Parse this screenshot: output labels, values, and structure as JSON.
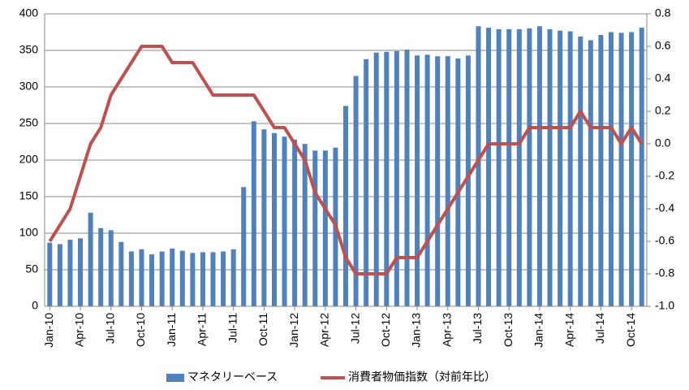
{
  "chart_data": {
    "type": "bar_line",
    "categories": [
      "Jan-10",
      null,
      null,
      "Apr-10",
      null,
      null,
      "Jul-10",
      null,
      null,
      "Oct-10",
      null,
      null,
      "Jan-11",
      null,
      null,
      "Apr-11",
      null,
      null,
      "Jul-11",
      null,
      null,
      "Oct-11",
      null,
      null,
      "Jan-12",
      null,
      null,
      "Apr-12",
      null,
      null,
      "Jul-12",
      null,
      null,
      "Oct-12",
      null,
      null,
      "Jan-13",
      null,
      null,
      "Apr-13",
      null,
      null,
      "Jul-13",
      null,
      null,
      "Oct-13",
      null,
      null,
      "Jan-14",
      null,
      null,
      "Apr-14",
      null,
      null,
      "Jul-14",
      null,
      null,
      "Oct-14",
      null
    ],
    "series": [
      {
        "name": "マネタリーベース",
        "color": "#4f81bd",
        "type": "bar",
        "values": [
          87,
          85,
          91,
          93,
          128,
          107,
          104,
          88,
          75,
          78,
          71,
          75,
          79,
          76,
          73,
          74,
          74,
          75,
          78,
          163,
          253,
          242,
          237,
          232,
          228,
          222,
          213,
          213,
          217,
          274,
          315,
          338,
          347,
          348,
          349,
          351,
          343,
          344,
          342,
          342,
          339,
          343,
          383,
          381,
          379,
          379,
          379,
          380,
          383,
          379,
          377,
          376,
          369,
          364,
          371,
          375,
          374,
          375,
          381
        ]
      },
      {
        "name": "消費者物価指数（対前年比）",
        "color": "#c0504d",
        "type": "line",
        "axis": "y2",
        "values": [
          -0.6,
          -0.5,
          -0.4,
          -0.2,
          0.0,
          0.1,
          0.3,
          0.4,
          0.5,
          0.6,
          0.6,
          0.6,
          0.5,
          0.5,
          0.5,
          0.4,
          0.3,
          0.3,
          0.3,
          0.3,
          0.3,
          0.2,
          0.1,
          0.1,
          0.0,
          -0.1,
          -0.3,
          -0.4,
          -0.5,
          -0.7,
          -0.8,
          -0.8,
          -0.8,
          -0.8,
          -0.7,
          -0.7,
          -0.7,
          -0.6,
          -0.5,
          -0.4,
          -0.3,
          -0.2,
          -0.1,
          0.0,
          0.0,
          0.0,
          0.0,
          0.1,
          0.1,
          0.1,
          0.1,
          0.1,
          0.2,
          0.1,
          0.1,
          0.1,
          0.0,
          0.1,
          0.0
        ]
      }
    ],
    "ylim": [
      0,
      400
    ],
    "yticks": [
      0,
      50,
      100,
      150,
      200,
      250,
      300,
      350,
      400
    ],
    "y2lim": [
      -1.0,
      0.8
    ],
    "y2ticks": [
      {
        "value": -1.0,
        "label": "-1.0"
      },
      -0.8,
      -0.6,
      -0.4,
      -0.2,
      {
        "value": 0.0,
        "label": "0.0"
      },
      0.2,
      0.4,
      0.6,
      0.8
    ],
    "grid": true,
    "legend": "bottom"
  }
}
